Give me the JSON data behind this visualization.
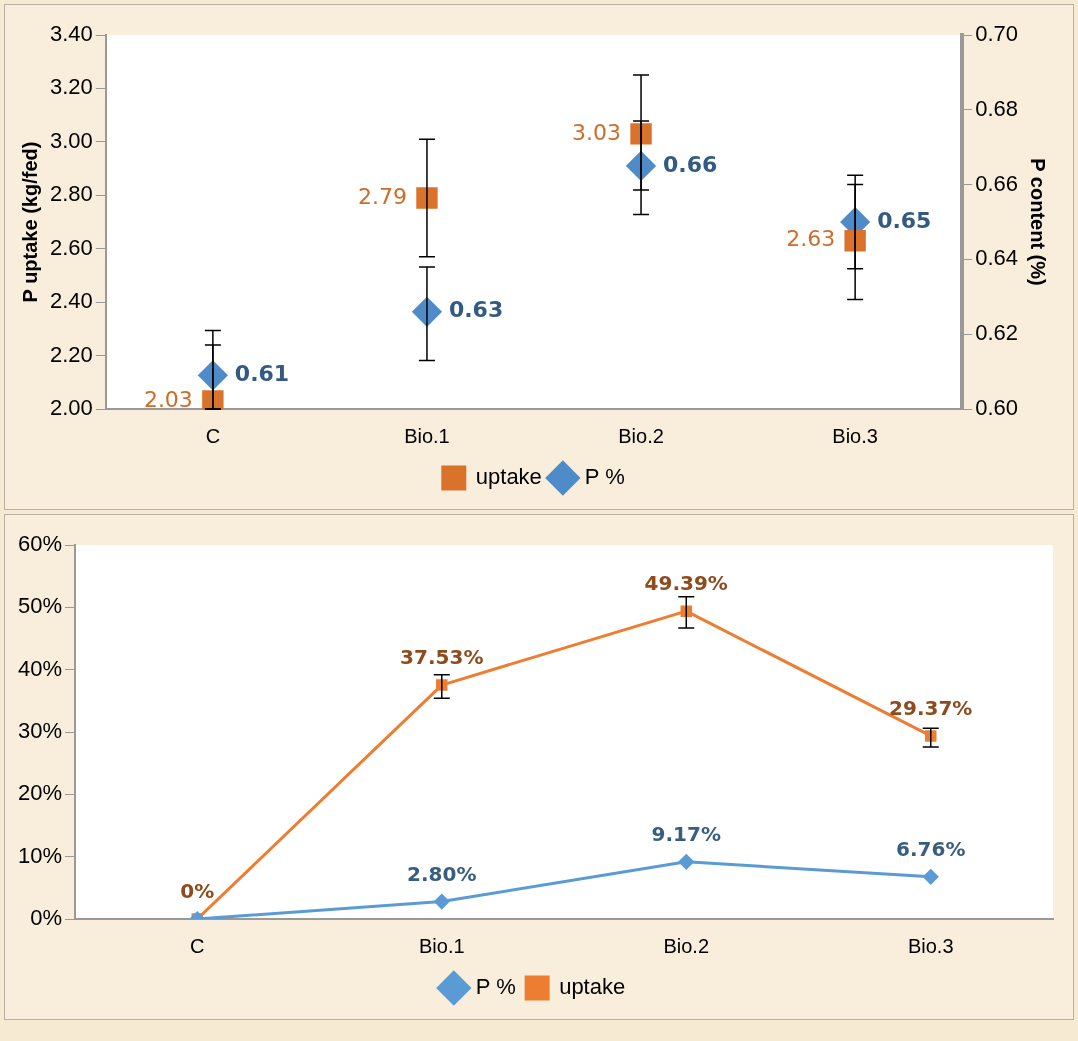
{
  "chart_data": [
    {
      "type": "scatter",
      "ylabel": "P uptake (kg/fed)",
      "y2label": "P content (%)",
      "categories": [
        "C",
        "Bio.1",
        "Bio.2",
        "Bio.3"
      ],
      "ylim": [
        2.0,
        3.4
      ],
      "yticks": [
        {
          "value": 2.0,
          "label": "2.00"
        },
        {
          "value": 2.2,
          "label": "2.20"
        },
        {
          "value": 2.4,
          "label": "2.40"
        },
        {
          "value": 2.6,
          "label": "2.60"
        },
        {
          "value": 2.8,
          "label": "2.80"
        },
        {
          "value": 3.0,
          "label": "3.00"
        },
        {
          "value": 3.2,
          "label": "3.20"
        },
        {
          "value": 3.4,
          "label": "3.40"
        }
      ],
      "y2lim": [
        0.6,
        0.7
      ],
      "y2ticks": [
        {
          "value": 0.6,
          "label": "0.60"
        },
        {
          "value": 0.62,
          "label": "0.62"
        },
        {
          "value": 0.64,
          "label": "0.64"
        },
        {
          "value": 0.66,
          "label": "0.66"
        },
        {
          "value": 0.68,
          "label": "0.68"
        },
        {
          "value": 0.7,
          "label": "0.70"
        }
      ],
      "legend": "bottom",
      "grid": false,
      "series": [
        {
          "name": "uptake",
          "color": "#d9732b",
          "marker": "square",
          "axis": "y",
          "values": [
            2.03,
            2.79,
            3.03,
            2.63
          ],
          "value_labels": [
            "2.03",
            "2.79",
            "3.03",
            "2.63"
          ],
          "errors": [
            [
              2.0,
              2.24
            ],
            [
              2.57,
              3.01
            ],
            [
              2.82,
              3.25
            ],
            [
              2.41,
              2.84
            ]
          ]
        },
        {
          "name": "P %",
          "color": "#4f8bc9",
          "marker": "diamond",
          "axis": "y2",
          "values": [
            0.609,
            0.626,
            0.665,
            0.65
          ],
          "value_labels": [
            "0.61",
            "0.63",
            "0.66",
            "0.65"
          ],
          "errors": [
            [
              0.6,
              0.621
            ],
            [
              0.613,
              0.638
            ],
            [
              0.652,
              0.677
            ],
            [
              0.6375,
              0.6625
            ]
          ]
        }
      ]
    },
    {
      "type": "line",
      "categories": [
        "C",
        "Bio.1",
        "Bio.2",
        "Bio.3"
      ],
      "ylim": [
        0,
        60
      ],
      "yticks": [
        {
          "value": 0,
          "label": "0%"
        },
        {
          "value": 10,
          "label": "10%"
        },
        {
          "value": 20,
          "label": "20%"
        },
        {
          "value": 30,
          "label": "30%"
        },
        {
          "value": 40,
          "label": "40%"
        },
        {
          "value": 50,
          "label": "50%"
        },
        {
          "value": 60,
          "label": "60%"
        }
      ],
      "legend": "bottom",
      "grid": false,
      "series": [
        {
          "name": "P %",
          "color": "#5b9bd5",
          "marker": "diamond",
          "values": [
            0,
            2.8,
            9.17,
            6.76
          ],
          "value_labels": [
            null,
            "2.80%",
            "9.17%",
            "6.76%"
          ]
        },
        {
          "name": "uptake",
          "color": "#ed7d31",
          "marker": "square",
          "values": [
            0,
            37.53,
            49.39,
            29.37
          ],
          "value_labels": [
            "0%",
            "37.53%",
            "49.39%",
            "29.37%"
          ],
          "errors": [
            null,
            [
              35.4,
              39.2
            ],
            [
              46.7,
              51.7
            ],
            [
              27.6,
              30.6
            ]
          ]
        }
      ]
    }
  ]
}
